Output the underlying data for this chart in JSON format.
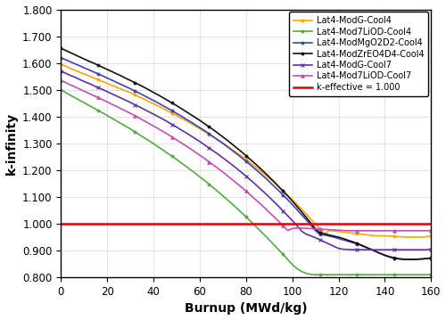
{
  "xlabel": "Burnup (MWd/kg)",
  "ylabel": "k-infinity",
  "xlim": [
    0,
    160
  ],
  "ylim": [
    0.8,
    1.8
  ],
  "ytick_labels": [
    "0.800",
    "0.900",
    "1.000",
    "1.100",
    "1.200",
    "1.300",
    "1.400",
    "1.500",
    "1.600",
    "1.700",
    "1.800"
  ],
  "yticks": [
    0.8,
    0.9,
    1.0,
    1.1,
    1.2,
    1.3,
    1.4,
    1.5,
    1.6,
    1.7,
    1.8
  ],
  "xticks": [
    0,
    20,
    40,
    60,
    80,
    100,
    120,
    140,
    160
  ],
  "burnup": [
    0,
    2,
    4,
    6,
    8,
    10,
    12,
    14,
    16,
    18,
    20,
    22,
    24,
    26,
    28,
    30,
    32,
    34,
    36,
    38,
    40,
    42,
    44,
    46,
    48,
    50,
    52,
    54,
    56,
    58,
    60,
    62,
    64,
    66,
    68,
    70,
    72,
    74,
    76,
    78,
    80,
    82,
    84,
    86,
    88,
    90,
    92,
    94,
    96,
    98,
    100,
    102,
    104,
    106,
    108,
    110,
    112,
    114,
    116,
    118,
    120,
    122,
    124,
    126,
    128,
    130,
    132,
    134,
    136,
    138,
    140,
    142,
    144,
    146,
    148,
    150,
    152,
    154,
    156,
    158,
    160
  ],
  "series": [
    {
      "label": "Lat4-ModG-Cool4",
      "color": "#FFA500",
      "marker": "o",
      "markersize": 2.0,
      "linewidth": 1.2,
      "markevery": 8,
      "values": [
        1.595,
        1.588,
        1.58,
        1.573,
        1.566,
        1.559,
        1.552,
        1.545,
        1.538,
        1.531,
        1.524,
        1.517,
        1.51,
        1.503,
        1.496,
        1.489,
        1.481,
        1.473,
        1.465,
        1.456,
        1.448,
        1.44,
        1.431,
        1.422,
        1.413,
        1.404,
        1.394,
        1.385,
        1.375,
        1.365,
        1.355,
        1.344,
        1.334,
        1.323,
        1.312,
        1.301,
        1.289,
        1.277,
        1.265,
        1.253,
        1.24,
        1.227,
        1.213,
        1.199,
        1.185,
        1.17,
        1.155,
        1.139,
        1.123,
        1.107,
        1.09,
        1.073,
        1.055,
        1.037,
        1.018,
        0.999,
        0.98,
        0.961,
        0.975,
        0.973,
        0.971,
        0.969,
        0.967,
        0.965,
        0.963,
        0.961,
        0.959,
        0.957,
        0.955,
        0.955,
        0.955,
        0.954,
        0.953,
        0.952,
        0.951,
        0.95,
        0.95,
        0.95,
        0.95,
        0.952,
        0.955
      ]
    },
    {
      "label": "Lat4-Mod7LiOD-Cool4",
      "color": "#55AA44",
      "marker": "o",
      "markersize": 2.0,
      "linewidth": 1.2,
      "markevery": 8,
      "values": [
        1.5,
        1.49,
        1.48,
        1.471,
        1.461,
        1.452,
        1.442,
        1.433,
        1.423,
        1.414,
        1.404,
        1.394,
        1.384,
        1.374,
        1.364,
        1.354,
        1.343,
        1.332,
        1.321,
        1.31,
        1.299,
        1.287,
        1.276,
        1.264,
        1.252,
        1.24,
        1.227,
        1.215,
        1.202,
        1.189,
        1.175,
        1.162,
        1.148,
        1.134,
        1.119,
        1.104,
        1.089,
        1.074,
        1.058,
        1.042,
        1.026,
        1.009,
        0.992,
        0.975,
        0.958,
        0.94,
        0.922,
        0.904,
        0.886,
        0.867,
        0.848,
        0.833,
        0.822,
        0.815,
        0.811,
        0.81,
        0.81,
        0.81,
        0.81,
        0.81,
        0.81,
        0.81,
        0.81,
        0.81,
        0.81,
        0.81,
        0.81,
        0.81,
        0.81,
        0.81,
        0.81,
        0.81,
        0.81,
        0.81,
        0.81,
        0.81,
        0.81,
        0.81,
        0.81,
        0.81,
        0.81
      ]
    },
    {
      "label": "Lat4-ModMgO2D2-Cool4",
      "color": "#4040BB",
      "marker": "o",
      "markersize": 2.0,
      "linewidth": 1.2,
      "markevery": 8,
      "values": [
        1.62,
        1.612,
        1.605,
        1.597,
        1.59,
        1.582,
        1.575,
        1.567,
        1.56,
        1.552,
        1.544,
        1.536,
        1.528,
        1.52,
        1.512,
        1.504,
        1.495,
        1.487,
        1.478,
        1.469,
        1.46,
        1.451,
        1.441,
        1.432,
        1.422,
        1.412,
        1.402,
        1.391,
        1.381,
        1.37,
        1.359,
        1.348,
        1.336,
        1.324,
        1.312,
        1.3,
        1.287,
        1.274,
        1.261,
        1.247,
        1.233,
        1.219,
        1.204,
        1.189,
        1.174,
        1.158,
        1.141,
        1.125,
        1.107,
        1.09,
        1.072,
        1.053,
        1.034,
        1.015,
        0.995,
        0.974,
        0.96,
        0.958,
        0.954,
        0.95,
        0.945,
        0.94,
        0.935,
        0.93,
        0.925,
        0.918,
        0.911,
        0.904,
        0.897,
        0.89,
        0.883,
        0.878,
        0.873,
        0.87,
        0.868,
        0.867,
        0.866,
        0.867,
        0.868,
        0.87,
        0.873
      ]
    },
    {
      "label": "Lat4-ModZrEO4D4-Cool4",
      "color": "#111111",
      "marker": "o",
      "markersize": 2.0,
      "linewidth": 1.2,
      "markevery": 8,
      "values": [
        1.655,
        1.647,
        1.639,
        1.631,
        1.623,
        1.615,
        1.607,
        1.6,
        1.592,
        1.584,
        1.576,
        1.568,
        1.56,
        1.552,
        1.543,
        1.535,
        1.526,
        1.518,
        1.509,
        1.5,
        1.49,
        1.481,
        1.471,
        1.461,
        1.451,
        1.441,
        1.43,
        1.419,
        1.408,
        1.397,
        1.386,
        1.374,
        1.362,
        1.35,
        1.337,
        1.324,
        1.311,
        1.297,
        1.283,
        1.269,
        1.254,
        1.239,
        1.224,
        1.208,
        1.192,
        1.175,
        1.158,
        1.14,
        1.122,
        1.104,
        1.085,
        1.065,
        1.045,
        1.024,
        1.003,
        0.981,
        0.966,
        0.962,
        0.958,
        0.954,
        0.95,
        0.945,
        0.939,
        0.933,
        0.927,
        0.92,
        0.912,
        0.905,
        0.897,
        0.889,
        0.882,
        0.876,
        0.872,
        0.869,
        0.867,
        0.867,
        0.867,
        0.868,
        0.869,
        0.87,
        0.872
      ]
    },
    {
      "label": "Lat4-ModG-Cool7",
      "color": "#6030A0",
      "marker": "x",
      "markersize": 3.5,
      "linewidth": 1.2,
      "markevery": 8,
      "values": [
        1.57,
        1.562,
        1.554,
        1.547,
        1.539,
        1.531,
        1.524,
        1.516,
        1.508,
        1.501,
        1.493,
        1.485,
        1.477,
        1.469,
        1.461,
        1.453,
        1.444,
        1.436,
        1.427,
        1.418,
        1.409,
        1.4,
        1.391,
        1.381,
        1.371,
        1.361,
        1.35,
        1.34,
        1.329,
        1.318,
        1.307,
        1.295,
        1.283,
        1.271,
        1.259,
        1.246,
        1.233,
        1.22,
        1.206,
        1.192,
        1.178,
        1.163,
        1.148,
        1.132,
        1.116,
        1.1,
        1.083,
        1.066,
        1.048,
        1.03,
        1.012,
        0.993,
        0.973,
        0.961,
        0.955,
        0.948,
        0.94,
        0.932,
        0.924,
        0.916,
        0.908,
        0.905,
        0.904,
        0.903,
        0.903,
        0.903,
        0.903,
        0.903,
        0.903,
        0.903,
        0.903,
        0.903,
        0.903,
        0.903,
        0.903,
        0.903,
        0.903,
        0.903,
        0.903,
        0.903,
        0.905
      ]
    },
    {
      "label": "Lat4-Mod7LiOD-Cool7",
      "color": "#C050B0",
      "marker": "^",
      "markersize": 2.5,
      "linewidth": 1.2,
      "markevery": 8,
      "values": [
        1.535,
        1.527,
        1.519,
        1.511,
        1.503,
        1.495,
        1.487,
        1.479,
        1.471,
        1.463,
        1.455,
        1.446,
        1.438,
        1.429,
        1.421,
        1.412,
        1.403,
        1.394,
        1.384,
        1.375,
        1.365,
        1.355,
        1.345,
        1.335,
        1.324,
        1.313,
        1.302,
        1.291,
        1.28,
        1.268,
        1.256,
        1.244,
        1.231,
        1.219,
        1.206,
        1.193,
        1.179,
        1.165,
        1.151,
        1.137,
        1.122,
        1.107,
        1.091,
        1.076,
        1.06,
        1.043,
        1.027,
        1.01,
        0.993,
        0.975,
        0.982,
        0.984,
        0.984,
        0.983,
        0.982,
        0.981,
        0.98,
        0.979,
        0.978,
        0.977,
        0.976,
        0.975,
        0.974,
        0.974,
        0.974,
        0.974,
        0.974,
        0.974,
        0.974,
        0.974,
        0.974,
        0.974,
        0.974,
        0.974,
        0.974,
        0.974,
        0.974,
        0.974,
        0.974,
        0.974,
        0.975
      ]
    }
  ],
  "keff_line": {
    "value": 1.0,
    "color": "#DD0000",
    "linewidth": 1.8,
    "label": "k-effective = 1.000"
  },
  "legend_fontsize": 7.0,
  "axis_label_fontsize": 10,
  "tick_fontsize": 8.5,
  "figure_bgcolor": "#FFFFFF",
  "axes_bgcolor": "#FFFFFF",
  "grid_color": "#BBBBBB",
  "grid_alpha": 0.6,
  "grid_linewidth": 0.5
}
